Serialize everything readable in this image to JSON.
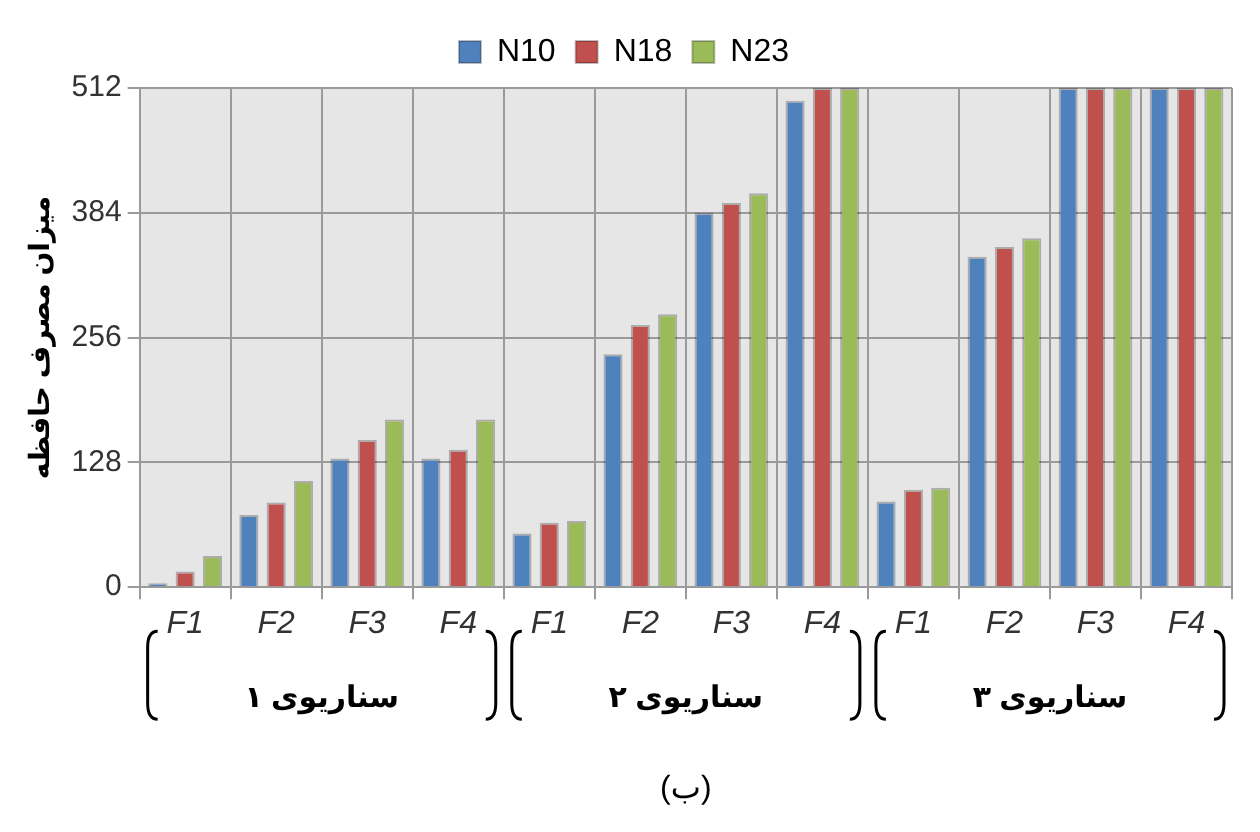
{
  "chart_data": {
    "type": "bar",
    "xlabel": "(ب)",
    "ylabel": "میزان مصرف حافظه",
    "categories": [
      "F1",
      "F2",
      "F3",
      "F4",
      "F1",
      "F2",
      "F3",
      "F4",
      "F1",
      "F2",
      "F3",
      "F4"
    ],
    "series": [
      {
        "name": "N10",
        "color": "#4f81bd",
        "values": [
          4,
          74,
          132,
          132,
          55,
          239,
          384,
          499,
          88,
          339,
          512,
          512
        ]
      },
      {
        "name": "N18",
        "color": "#c0504d",
        "values": [
          16,
          87,
          151,
          141,
          66,
          269,
          394,
          512,
          100,
          349,
          512,
          512
        ]
      },
      {
        "name": "N23",
        "color": "#9bbb59",
        "values": [
          32,
          109,
          172,
          172,
          68,
          280,
          404,
          512,
          102,
          358,
          512,
          512
        ]
      }
    ],
    "annotations": [
      "سناریوی ۱",
      "سناریوی ۲",
      "سناریوی ۳"
    ],
    "ylim": [
      0,
      512
    ],
    "yticks": [
      0,
      128,
      256,
      384,
      512
    ],
    "grid": true,
    "legend": "top"
  }
}
